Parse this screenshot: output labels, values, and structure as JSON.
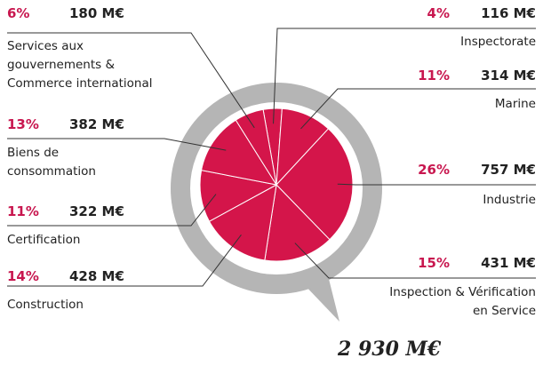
{
  "chart_data": {
    "type": "pie",
    "categories": [
      "Inspectorate",
      "Marine",
      "Industrie",
      "Inspection & Vérification\nen Service",
      "Construction",
      "Certification",
      "Biens de\nconsommation",
      "Services aux\ngouvernements &\nCommerce international"
    ],
    "values": [
      116,
      314,
      757,
      431,
      428,
      322,
      382,
      180
    ],
    "value_labels": [
      "116 M€",
      "314 M€",
      "757 M€",
      "431 M€",
      "428 M€",
      "322 M€",
      "382 M€",
      "180 M€"
    ],
    "shares": [
      4,
      11,
      26,
      15,
      14,
      11,
      13,
      6
    ],
    "share_labels": [
      "4%",
      "11%",
      "26%",
      "15%",
      "14%",
      "11%",
      "13%",
      "6%"
    ],
    "total": 2930,
    "total_label": "2 930 M€",
    "color": "#d4154a",
    "ring_color": "#b5b5b5",
    "share_color": "#c8174f"
  }
}
